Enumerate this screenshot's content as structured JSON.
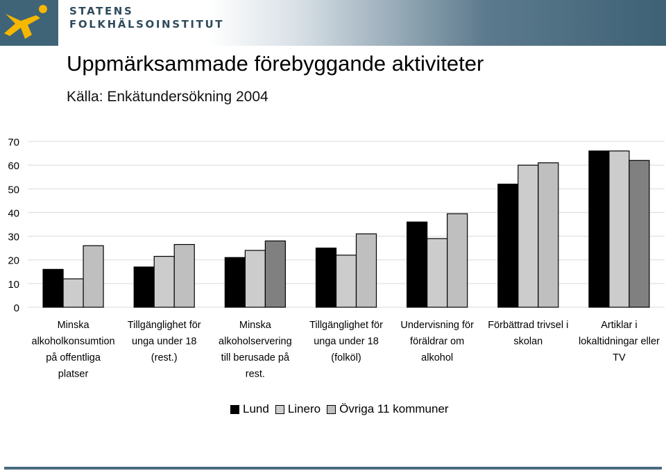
{
  "header": {
    "org_line1": "STATENS",
    "org_line2": "FOLKHÄLSOINSTITUT",
    "logo_icon": "leaping-figure-logo",
    "logo_color": "#f5b700"
  },
  "title": "Uppmärksammade förebyggande aktiviteter",
  "subtitle": "Källa: Enkätundersökning 2004",
  "chart_data": {
    "type": "bar",
    "title": "",
    "xlabel": "",
    "ylabel": "",
    "ylim": [
      0,
      70
    ],
    "yticks": [
      "0",
      "10",
      "20",
      "30",
      "40",
      "50",
      "60",
      "70"
    ],
    "grid": true,
    "legend_position": "bottom",
    "categories": [
      [
        "Minska",
        "alkoholkonsumtion",
        "på offentliga",
        "platser"
      ],
      [
        "Tillgänglighet för",
        "unga under 18",
        "(rest.)"
      ],
      [
        "Minska",
        "alkoholservering",
        "till berusade på",
        "rest."
      ],
      [
        "Tillgänglighet för",
        "unga under 18",
        "(folköl)"
      ],
      [
        "Undervisning för",
        "föräldrar om",
        "alkohol"
      ],
      [
        "Förbättrad trivsel i",
        "skolan"
      ],
      [
        "Artiklar i",
        "lokaltidningar eller",
        "TV"
      ]
    ],
    "series": [
      {
        "name": "Lund",
        "color": "#000000",
        "values": [
          16,
          17,
          21,
          25,
          36,
          52,
          66
        ]
      },
      {
        "name": "Linero",
        "color": "#cccccc",
        "values": [
          12,
          21.5,
          24,
          22,
          29,
          60,
          66
        ]
      },
      {
        "name": "Övriga 11 kommuner",
        "color": "#bfbfbf",
        "values": [
          26,
          26.5,
          28,
          31,
          39.5,
          61,
          62
        ]
      }
    ],
    "bar_fills": [
      [
        "#000000",
        "#cccccc",
        "#bfbfbf"
      ],
      [
        "#000000",
        "#cccccc",
        "#bfbfbf"
      ],
      [
        "#000000",
        "#cccccc",
        "#808080"
      ],
      [
        "#000000",
        "#cccccc",
        "#bfbfbf"
      ],
      [
        "#000000",
        "#cccccc",
        "#bfbfbf"
      ],
      [
        "#000000",
        "#cccccc",
        "#bfbfbf"
      ],
      [
        "#000000",
        "#cccccc",
        "#808080"
      ]
    ]
  }
}
